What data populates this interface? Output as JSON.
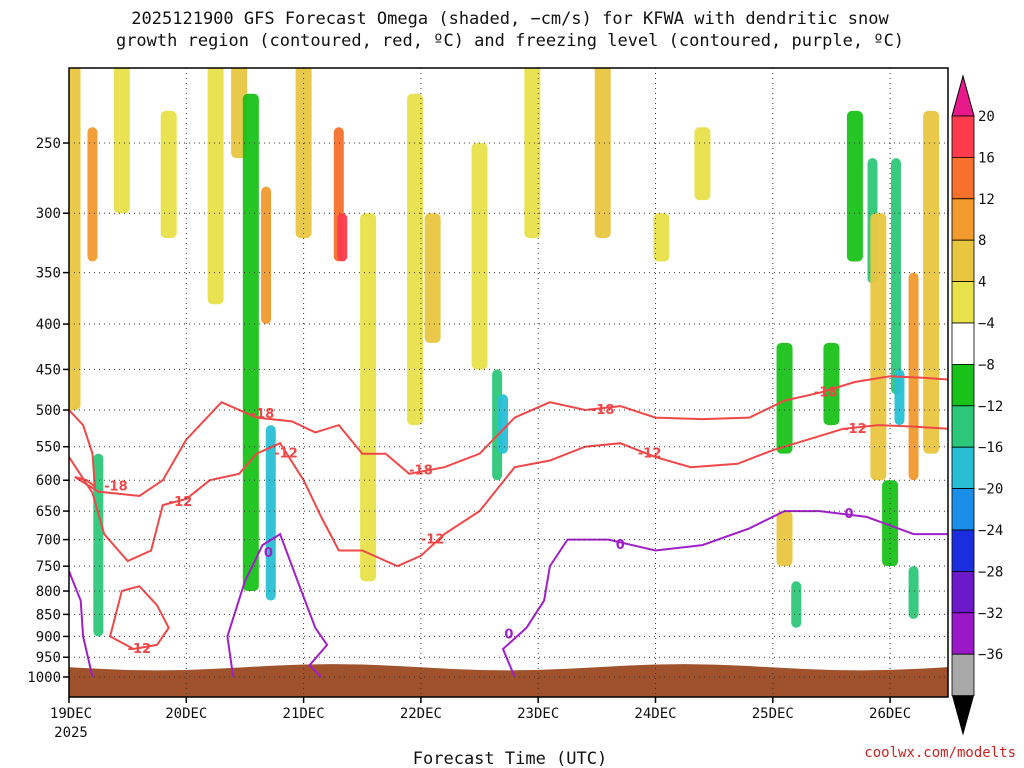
{
  "chart_data": {
    "type": "time-height cross-section",
    "title_line1": "2025121900 GFS Forecast Omega (shaded, −cm/s) for KFWA with dendritic snow",
    "title_line2": "growth region (contoured, red, ºC) and freezing level (contoured, purple, ºC)",
    "xlabel": "Forecast Time (UTC)",
    "credit": "coolwx.com/modelts",
    "x_ticks": [
      {
        "label": "19DEC",
        "sub": "2025",
        "day": 0
      },
      {
        "label": "20DEC",
        "sub": "",
        "day": 1
      },
      {
        "label": "21DEC",
        "sub": "",
        "day": 2
      },
      {
        "label": "22DEC",
        "sub": "",
        "day": 3
      },
      {
        "label": "23DEC",
        "sub": "",
        "day": 4
      },
      {
        "label": "24DEC",
        "sub": "",
        "day": 5
      },
      {
        "label": "25DEC",
        "sub": "",
        "day": 6
      },
      {
        "label": "26DEC",
        "sub": "",
        "day": 7
      }
    ],
    "x_range_days": [
      0,
      7.5
    ],
    "y_ticks_hpa": [
      250,
      300,
      350,
      400,
      450,
      500,
      550,
      600,
      650,
      700,
      750,
      800,
      850,
      900,
      950,
      1000
    ],
    "y_range_hpa": [
      200,
      1025
    ],
    "colorbar": {
      "labels": [
        "20",
        "16",
        "12",
        "8",
        "4",
        "−4",
        "−8",
        "−12",
        "−16",
        "−20",
        "−24",
        "−28",
        "−32",
        "−36"
      ],
      "colors": [
        "#ff3b4e",
        "#f7702c",
        "#f29a2e",
        "#e9c640",
        "#e8e24a",
        "#ffffff",
        "#18c218",
        "#2dc77a",
        "#28bfd4",
        "#1a8ee8",
        "#1a2ee0",
        "#6b18c8",
        "#9b18c8",
        "#a8a8a8"
      ],
      "top_arrow_color": "#e8198a",
      "bottom_arrow_color": "#000000"
    },
    "contour_labels": {
      "dgz": [
        "-18",
        "-12"
      ],
      "freezing": "0"
    },
    "colors": {
      "dgz": "#f04848",
      "freezing": "#a020c8",
      "terrain": "#a0522d"
    },
    "omega_features": [
      {
        "day": 0.03,
        "p_top": 200,
        "p_bot": 500,
        "value": 8
      },
      {
        "day": 0.2,
        "p_top": 240,
        "p_bot": 340,
        "value": 12
      },
      {
        "day": 0.25,
        "p_top": 560,
        "p_bot": 900,
        "value": -12
      },
      {
        "day": 0.45,
        "p_top": 200,
        "p_bot": 300,
        "value": 4
      },
      {
        "day": 0.85,
        "p_top": 230,
        "p_bot": 320,
        "value": 4
      },
      {
        "day": 1.25,
        "p_top": 200,
        "p_bot": 380,
        "value": 4
      },
      {
        "day": 1.45,
        "p_top": 200,
        "p_bot": 260,
        "value": 8
      },
      {
        "day": 1.55,
        "p_top": 220,
        "p_bot": 800,
        "value": -8
      },
      {
        "day": 1.68,
        "p_top": 280,
        "p_bot": 400,
        "value": 12
      },
      {
        "day": 1.72,
        "p_top": 520,
        "p_bot": 820,
        "value": -16
      },
      {
        "day": 2.0,
        "p_top": 200,
        "p_bot": 320,
        "value": 8
      },
      {
        "day": 2.3,
        "p_top": 240,
        "p_bot": 340,
        "value": 16
      },
      {
        "day": 2.33,
        "p_top": 300,
        "p_bot": 340,
        "value": 20
      },
      {
        "day": 2.55,
        "p_top": 300,
        "p_bot": 780,
        "value": 4
      },
      {
        "day": 2.95,
        "p_top": 220,
        "p_bot": 520,
        "value": 4
      },
      {
        "day": 3.1,
        "p_top": 300,
        "p_bot": 420,
        "value": 8
      },
      {
        "day": 3.5,
        "p_top": 250,
        "p_bot": 450,
        "value": 4
      },
      {
        "day": 3.65,
        "p_top": 450,
        "p_bot": 600,
        "value": -12
      },
      {
        "day": 3.7,
        "p_top": 480,
        "p_bot": 560,
        "value": -16
      },
      {
        "day": 3.95,
        "p_top": 200,
        "p_bot": 320,
        "value": 4
      },
      {
        "day": 4.55,
        "p_top": 200,
        "p_bot": 320,
        "value": 8
      },
      {
        "day": 5.05,
        "p_top": 300,
        "p_bot": 340,
        "value": 4
      },
      {
        "day": 5.4,
        "p_top": 240,
        "p_bot": 290,
        "value": 4
      },
      {
        "day": 6.1,
        "p_top": 420,
        "p_bot": 560,
        "value": -8
      },
      {
        "day": 6.1,
        "p_top": 650,
        "p_bot": 750,
        "value": 8
      },
      {
        "day": 6.2,
        "p_top": 780,
        "p_bot": 880,
        "value": -12
      },
      {
        "day": 6.5,
        "p_top": 420,
        "p_bot": 520,
        "value": -8
      },
      {
        "day": 6.7,
        "p_top": 230,
        "p_bot": 340,
        "value": -8
      },
      {
        "day": 6.85,
        "p_top": 260,
        "p_bot": 360,
        "value": -12
      },
      {
        "day": 6.9,
        "p_top": 300,
        "p_bot": 600,
        "value": 8
      },
      {
        "day": 7.05,
        "p_top": 260,
        "p_bot": 480,
        "value": -12
      },
      {
        "day": 7.08,
        "p_top": 450,
        "p_bot": 520,
        "value": -16
      },
      {
        "day": 7.2,
        "p_top": 350,
        "p_bot": 600,
        "value": 12
      },
      {
        "day": 7.35,
        "p_top": 230,
        "p_bot": 560,
        "value": 8
      },
      {
        "day": 7.0,
        "p_top": 600,
        "p_bot": 750,
        "value": -8
      },
      {
        "day": 7.2,
        "p_top": 750,
        "p_bot": 860,
        "value": -12
      }
    ],
    "dgz_minus18": [
      {
        "day": 0.0,
        "p": 500
      },
      {
        "day": 0.12,
        "p": 520
      },
      {
        "day": 0.2,
        "p": 560
      },
      {
        "day": 0.22,
        "p": 610
      },
      {
        "day": 0.15,
        "p": 600
      },
      {
        "day": 0.05,
        "p": 595
      },
      {
        "day": 0.25,
        "p": 618
      },
      {
        "day": 0.6,
        "p": 625
      },
      {
        "day": 0.8,
        "p": 600
      },
      {
        "day": 1.0,
        "p": 540
      },
      {
        "day": 1.3,
        "p": 490
      },
      {
        "day": 1.6,
        "p": 510
      },
      {
        "day": 1.9,
        "p": 515
      },
      {
        "day": 2.1,
        "p": 530
      },
      {
        "day": 2.3,
        "p": 520
      },
      {
        "day": 2.5,
        "p": 560
      },
      {
        "day": 2.7,
        "p": 560
      },
      {
        "day": 2.9,
        "p": 590
      },
      {
        "day": 3.2,
        "p": 580
      },
      {
        "day": 3.5,
        "p": 560
      },
      {
        "day": 3.8,
        "p": 510
      },
      {
        "day": 4.1,
        "p": 490
      },
      {
        "day": 4.4,
        "p": 500
      },
      {
        "day": 4.7,
        "p": 495
      },
      {
        "day": 5.0,
        "p": 510
      },
      {
        "day": 5.4,
        "p": 512
      },
      {
        "day": 5.8,
        "p": 510
      },
      {
        "day": 6.1,
        "p": 488
      },
      {
        "day": 6.4,
        "p": 478
      },
      {
        "day": 6.7,
        "p": 465
      },
      {
        "day": 7.0,
        "p": 458
      },
      {
        "day": 7.3,
        "p": 460
      },
      {
        "day": 7.5,
        "p": 462
      }
    ],
    "dgz_minus12": [
      {
        "day": 0.0,
        "p": 565
      },
      {
        "day": 0.2,
        "p": 620
      },
      {
        "day": 0.3,
        "p": 690
      },
      {
        "day": 0.5,
        "p": 740
      },
      {
        "day": 0.7,
        "p": 720
      },
      {
        "day": 0.8,
        "p": 640
      },
      {
        "day": 1.0,
        "p": 630
      },
      {
        "day": 1.2,
        "p": 600
      },
      {
        "day": 1.45,
        "p": 590
      },
      {
        "day": 1.6,
        "p": 560
      },
      {
        "day": 1.8,
        "p": 545
      },
      {
        "day": 2.0,
        "p": 600
      },
      {
        "day": 2.15,
        "p": 660
      },
      {
        "day": 2.3,
        "p": 720
      },
      {
        "day": 2.5,
        "p": 720
      },
      {
        "day": 2.8,
        "p": 750
      },
      {
        "day": 3.0,
        "p": 730
      },
      {
        "day": 3.2,
        "p": 690
      },
      {
        "day": 3.5,
        "p": 650
      },
      {
        "day": 3.8,
        "p": 580
      },
      {
        "day": 4.1,
        "p": 570
      },
      {
        "day": 4.4,
        "p": 550
      },
      {
        "day": 4.7,
        "p": 545
      },
      {
        "day": 5.0,
        "p": 565
      },
      {
        "day": 5.3,
        "p": 580
      },
      {
        "day": 5.7,
        "p": 575
      },
      {
        "day": 6.0,
        "p": 555
      },
      {
        "day": 6.3,
        "p": 540
      },
      {
        "day": 6.6,
        "p": 525
      },
      {
        "day": 6.9,
        "p": 520
      },
      {
        "day": 7.2,
        "p": 522
      },
      {
        "day": 7.5,
        "p": 525
      }
    ],
    "dgz_minus12_loop": [
      {
        "day": 0.35,
        "p": 900
      },
      {
        "day": 0.45,
        "p": 800
      },
      {
        "day": 0.6,
        "p": 790
      },
      {
        "day": 0.75,
        "p": 830
      },
      {
        "day": 0.85,
        "p": 880
      },
      {
        "day": 0.75,
        "p": 920
      },
      {
        "day": 0.55,
        "p": 930
      },
      {
        "day": 0.35,
        "p": 900
      }
    ],
    "freezing_0": [
      {
        "day": 1.4,
        "p": 1000
      },
      {
        "day": 1.35,
        "p": 900
      },
      {
        "day": 1.5,
        "p": 780
      },
      {
        "day": 1.65,
        "p": 710
      },
      {
        "day": 1.8,
        "p": 690
      },
      {
        "day": 1.95,
        "p": 780
      },
      {
        "day": 2.1,
        "p": 880
      },
      {
        "day": 2.2,
        "p": 920
      },
      {
        "day": 2.05,
        "p": 970
      },
      {
        "day": 2.15,
        "p": 1000
      }
    ],
    "freezing_0b": [
      {
        "day": 3.8,
        "p": 1000
      },
      {
        "day": 3.7,
        "p": 930
      },
      {
        "day": 3.9,
        "p": 880
      },
      {
        "day": 4.05,
        "p": 820
      },
      {
        "day": 4.1,
        "p": 750
      },
      {
        "day": 4.25,
        "p": 700
      },
      {
        "day": 4.6,
        "p": 700
      },
      {
        "day": 5.0,
        "p": 720
      },
      {
        "day": 5.4,
        "p": 710
      },
      {
        "day": 5.8,
        "p": 680
      },
      {
        "day": 6.1,
        "p": 650
      },
      {
        "day": 6.4,
        "p": 650
      },
      {
        "day": 6.8,
        "p": 660
      },
      {
        "day": 7.2,
        "p": 690
      },
      {
        "day": 7.5,
        "p": 690
      }
    ],
    "freezing_0_left": [
      {
        "day": 0.0,
        "p": 760
      },
      {
        "day": 0.1,
        "p": 820
      },
      {
        "day": 0.12,
        "p": 900
      },
      {
        "day": 0.2,
        "p": 1000
      }
    ]
  }
}
